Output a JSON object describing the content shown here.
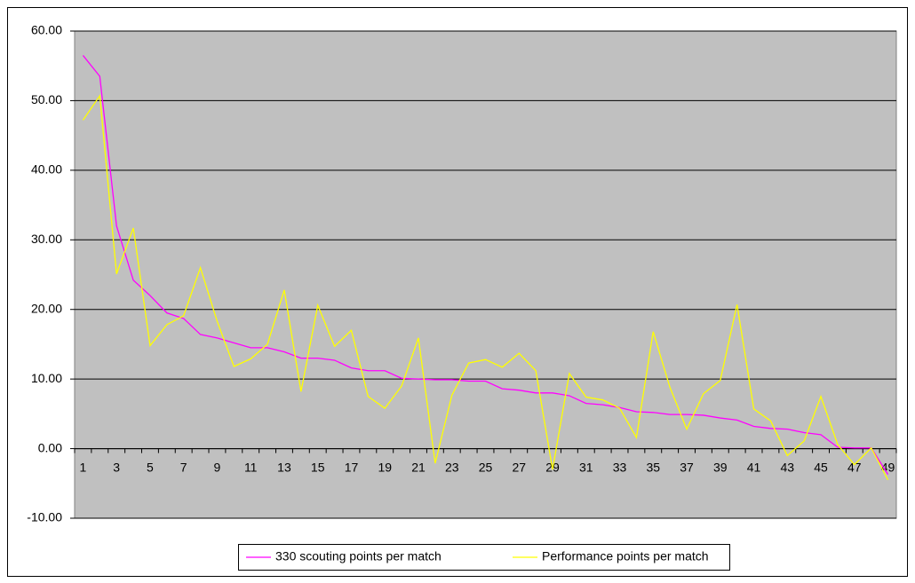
{
  "chart_data": {
    "type": "line",
    "categories": [
      1,
      null,
      3,
      null,
      5,
      null,
      7,
      null,
      9,
      null,
      11,
      null,
      13,
      null,
      15,
      null,
      17,
      null,
      19,
      null,
      21,
      null,
      23,
      null,
      25,
      null,
      27,
      null,
      29,
      null,
      31,
      null,
      33,
      null,
      35,
      null,
      37,
      null,
      39,
      null,
      41,
      null,
      43,
      null,
      45,
      null,
      47,
      null,
      49
    ],
    "series": [
      {
        "name": "330 scouting points per match",
        "color": "#ff00ff",
        "values": [
          56.5,
          53.5,
          32,
          24.2,
          22,
          19.5,
          18.7,
          16.4,
          15.9,
          15.2,
          14.5,
          14.5,
          13.9,
          13,
          13,
          12.7,
          11.6,
          11.2,
          11.2,
          10.1,
          10,
          9.9,
          9.9,
          9.7,
          9.7,
          8.6,
          8.4,
          8,
          8,
          7.6,
          6.5,
          6.3,
          5.9,
          5.3,
          5.2,
          4.9,
          4.9,
          4.8,
          4.4,
          4.1,
          3.2,
          2.9,
          2.8,
          2.3,
          2,
          0.2,
          0.1,
          0.1,
          -3.7
        ]
      },
      {
        "name": "Performance points per match",
        "color": "#ffff00",
        "values": [
          47.2,
          50.7,
          25.1,
          31.7,
          14.8,
          17.8,
          19.1,
          26,
          18.3,
          11.8,
          12.9,
          15,
          22.8,
          8.2,
          20.6,
          14.7,
          17,
          7.5,
          5.8,
          9,
          15.9,
          -2.1,
          7.7,
          12.3,
          12.8,
          11.7,
          13.7,
          11.2,
          -3,
          10.8,
          7.4,
          7,
          5.8,
          1.6,
          16.8,
          8.8,
          2.8,
          7.9,
          9.8,
          20.7,
          5.7,
          4,
          -1,
          1.1,
          7.5,
          0.6,
          -2.3,
          0.1,
          -4.5
        ]
      }
    ],
    "ylim": [
      -10,
      60
    ],
    "yticks": [
      {
        "value": -10,
        "label": "-10.00"
      },
      {
        "value": 0,
        "label": "0.00"
      },
      {
        "value": 10,
        "label": "10.00"
      },
      {
        "value": 20,
        "label": "20.00"
      },
      {
        "value": 30,
        "label": "30.00"
      },
      {
        "value": 40,
        "label": "40.00"
      },
      {
        "value": 50,
        "label": "50.00"
      },
      {
        "value": 60,
        "label": "60.00"
      }
    ],
    "grid": true,
    "plot_background": "#c0c0c0",
    "legend": "bottom"
  }
}
